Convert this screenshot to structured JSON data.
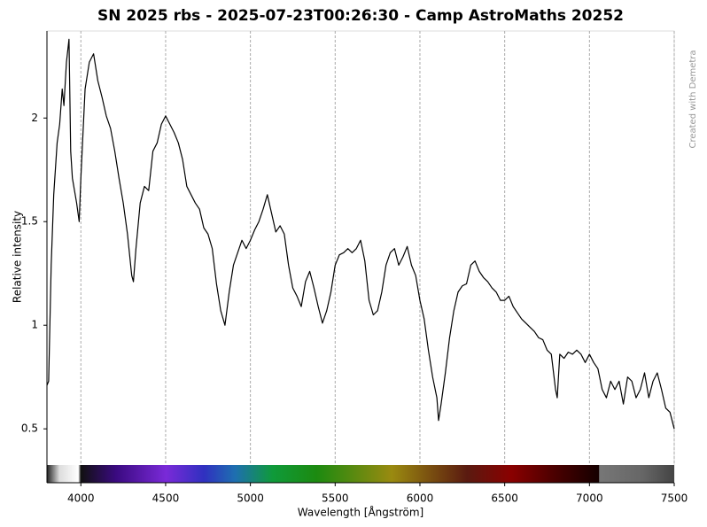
{
  "chart_data": {
    "type": "line",
    "title": "SN 2025 rbs - 2025-07-23T00:26:30 - Camp AstroMaths 20252",
    "xlabel": "Wavelength [Ångström]",
    "ylabel": "Relative intensity",
    "credit": "Created with Demetra",
    "color": "#000000",
    "xlim": [
      3800,
      7500
    ],
    "ylim": [
      0.24,
      2.42
    ],
    "xticks": [
      4000,
      4500,
      5000,
      5500,
      6000,
      6500,
      7000,
      7500
    ],
    "yticks": [
      0.5,
      1,
      1.5,
      2
    ],
    "grid": true,
    "x": [
      3800,
      3810,
      3825,
      3840,
      3860,
      3875,
      3890,
      3900,
      3915,
      3930,
      3940,
      3950,
      3975,
      3990,
      4000,
      4025,
      4050,
      4075,
      4100,
      4125,
      4150,
      4175,
      4200,
      4225,
      4250,
      4275,
      4300,
      4310,
      4325,
      4350,
      4375,
      4400,
      4425,
      4450,
      4475,
      4500,
      4525,
      4550,
      4575,
      4600,
      4625,
      4650,
      4675,
      4700,
      4725,
      4750,
      4775,
      4800,
      4825,
      4850,
      4875,
      4900,
      4925,
      4950,
      4975,
      5000,
      5025,
      5050,
      5075,
      5100,
      5125,
      5150,
      5175,
      5200,
      5225,
      5250,
      5275,
      5300,
      5325,
      5350,
      5375,
      5400,
      5425,
      5450,
      5475,
      5500,
      5525,
      5550,
      5575,
      5600,
      5625,
      5650,
      5675,
      5700,
      5725,
      5750,
      5775,
      5800,
      5825,
      5850,
      5875,
      5900,
      5925,
      5950,
      5975,
      6000,
      6025,
      6050,
      6075,
      6100,
      6110,
      6125,
      6150,
      6175,
      6200,
      6225,
      6250,
      6275,
      6300,
      6325,
      6350,
      6375,
      6400,
      6425,
      6450,
      6475,
      6500,
      6525,
      6550,
      6575,
      6600,
      6625,
      6650,
      6675,
      6700,
      6725,
      6750,
      6775,
      6800,
      6810,
      6825,
      6850,
      6875,
      6900,
      6925,
      6950,
      6975,
      7000,
      7025,
      7050,
      7075,
      7100,
      7125,
      7150,
      7175,
      7200,
      7225,
      7250,
      7275,
      7300,
      7325,
      7350,
      7375,
      7400,
      7425,
      7450,
      7475,
      7500
    ],
    "values": [
      0.71,
      0.73,
      1.29,
      1.63,
      1.88,
      1.97,
      2.14,
      2.06,
      2.27,
      2.38,
      1.84,
      1.71,
      1.59,
      1.5,
      1.71,
      2.14,
      2.27,
      2.31,
      2.18,
      2.1,
      2.01,
      1.95,
      1.84,
      1.71,
      1.59,
      1.44,
      1.24,
      1.21,
      1.37,
      1.59,
      1.67,
      1.65,
      1.84,
      1.88,
      1.97,
      2.01,
      1.97,
      1.93,
      1.88,
      1.8,
      1.67,
      1.63,
      1.59,
      1.56,
      1.47,
      1.44,
      1.37,
      1.2,
      1.07,
      1.0,
      1.16,
      1.29,
      1.35,
      1.41,
      1.37,
      1.41,
      1.46,
      1.5,
      1.56,
      1.63,
      1.54,
      1.45,
      1.48,
      1.44,
      1.29,
      1.18,
      1.14,
      1.09,
      1.21,
      1.26,
      1.18,
      1.09,
      1.01,
      1.07,
      1.16,
      1.29,
      1.34,
      1.35,
      1.37,
      1.35,
      1.37,
      1.41,
      1.31,
      1.12,
      1.05,
      1.07,
      1.16,
      1.29,
      1.35,
      1.37,
      1.29,
      1.33,
      1.38,
      1.29,
      1.24,
      1.12,
      1.03,
      0.88,
      0.75,
      0.65,
      0.54,
      0.62,
      0.77,
      0.94,
      1.07,
      1.16,
      1.19,
      1.2,
      1.29,
      1.31,
      1.26,
      1.23,
      1.21,
      1.18,
      1.16,
      1.12,
      1.12,
      1.14,
      1.09,
      1.06,
      1.03,
      1.01,
      0.99,
      0.97,
      0.94,
      0.93,
      0.88,
      0.86,
      0.69,
      0.65,
      0.86,
      0.84,
      0.87,
      0.86,
      0.88,
      0.86,
      0.82,
      0.86,
      0.82,
      0.79,
      0.69,
      0.65,
      0.73,
      0.69,
      0.73,
      0.62,
      0.75,
      0.73,
      0.65,
      0.69,
      0.77,
      0.65,
      0.73,
      0.77,
      0.69,
      0.6,
      0.58,
      0.5
    ]
  }
}
